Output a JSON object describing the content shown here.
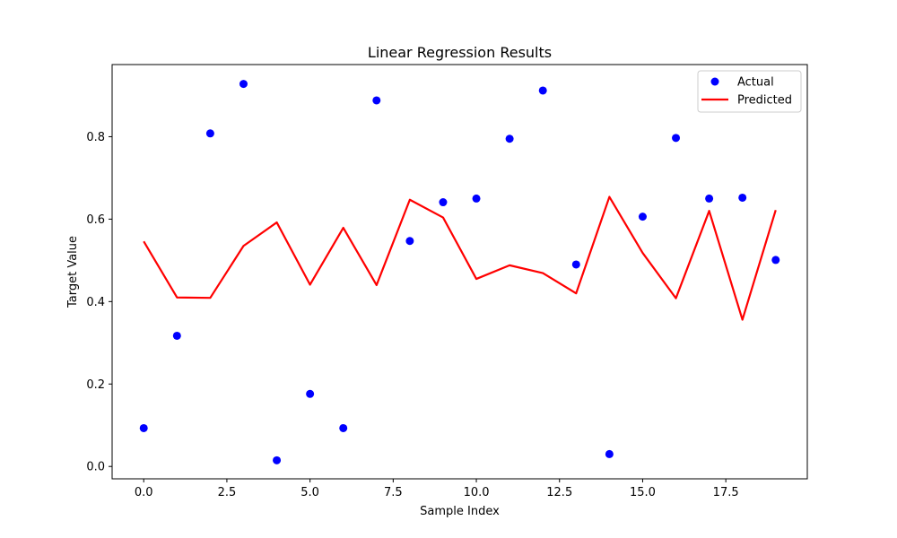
{
  "chart_data": {
    "type": "line",
    "title": "Linear Regression Results",
    "xlabel": "Sample Index",
    "ylabel": "Target Value",
    "xlim": [
      -0.95,
      19.95
    ],
    "ylim": [
      -0.03,
      0.975
    ],
    "xticks": [
      0.0,
      2.5,
      5.0,
      7.5,
      10.0,
      12.5,
      15.0,
      17.5
    ],
    "xtick_labels": [
      "0.0",
      "2.5",
      "5.0",
      "7.5",
      "10.0",
      "12.5",
      "15.0",
      "17.5"
    ],
    "yticks": [
      0.0,
      0.2,
      0.4,
      0.6,
      0.8
    ],
    "ytick_labels": [
      "0.0",
      "0.2",
      "0.4",
      "0.6",
      "0.8"
    ],
    "grid": false,
    "legend_position": "top-right",
    "x": [
      0,
      1,
      2,
      3,
      4,
      5,
      6,
      7,
      8,
      9,
      10,
      11,
      12,
      13,
      14,
      15,
      16,
      17,
      18,
      19
    ],
    "series": [
      {
        "name": "Actual",
        "kind": "scatter",
        "color": "#0000ff",
        "values": [
          0.093,
          0.317,
          0.808,
          0.928,
          0.015,
          0.176,
          0.093,
          0.888,
          0.547,
          0.641,
          0.65,
          0.795,
          0.912,
          0.49,
          0.03,
          0.606,
          0.797,
          0.65,
          0.652,
          0.501
        ]
      },
      {
        "name": "Predicted",
        "kind": "line",
        "color": "#ff0000",
        "values": [
          0.546,
          0.41,
          0.409,
          0.535,
          0.592,
          0.441,
          0.579,
          0.44,
          0.647,
          0.604,
          0.455,
          0.488,
          0.469,
          0.42,
          0.654,
          0.518,
          0.408,
          0.62,
          0.356,
          0.622
        ]
      }
    ]
  }
}
